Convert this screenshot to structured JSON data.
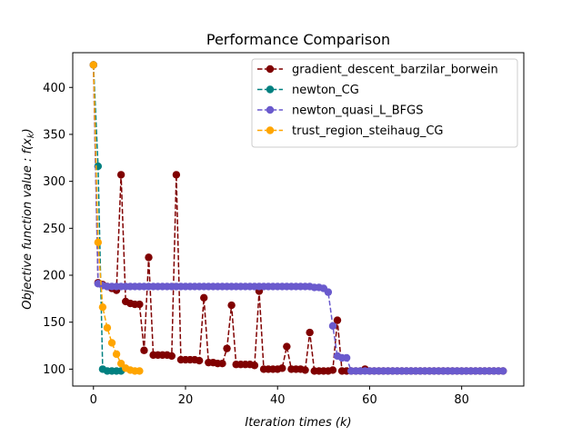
{
  "chart_data": {
    "type": "line",
    "title": "Performance Comparison",
    "xlabel": "Iteration times (k)",
    "ylabel": "Objective function value : f(x_k)",
    "xlim": [
      -4.5,
      93.5
    ],
    "ylim": [
      82,
      437
    ],
    "xticks": [
      0,
      20,
      40,
      60,
      80
    ],
    "yticks": [
      100,
      150,
      200,
      250,
      300,
      350,
      400
    ],
    "grid": false,
    "legend_position": "top-right",
    "series": [
      {
        "name": "gradient_descent_barzilar_borwein",
        "color": "#800000",
        "x": [
          0,
          1,
          2,
          3,
          4,
          5,
          6,
          7,
          8,
          9,
          10,
          11,
          12,
          13,
          14,
          15,
          16,
          17,
          18,
          19,
          20,
          21,
          22,
          23,
          24,
          25,
          26,
          27,
          28,
          29,
          30,
          31,
          32,
          33,
          34,
          35,
          36,
          37,
          38,
          39,
          40,
          41,
          42,
          43,
          44,
          45,
          46,
          47,
          48,
          49,
          50,
          51,
          52,
          53,
          54,
          55,
          56,
          57,
          58,
          59,
          60,
          61,
          62,
          63,
          64,
          65,
          66,
          67,
          68,
          69,
          70,
          71,
          72,
          73,
          74,
          75,
          76,
          77,
          78,
          79,
          80,
          81,
          82,
          83,
          84,
          85,
          86,
          87,
          88,
          89
        ],
        "y": [
          424,
          192,
          190,
          188,
          186,
          184,
          307,
          172,
          170,
          169,
          169,
          120,
          219,
          115,
          115,
          115,
          115,
          114,
          307,
          110,
          110,
          110,
          110,
          109,
          176,
          107,
          107,
          106,
          106,
          122,
          168,
          105,
          105,
          105,
          105,
          104,
          183,
          100,
          100,
          100,
          100,
          101,
          124,
          100,
          100,
          100,
          99,
          139,
          98,
          98,
          98,
          98,
          99,
          152,
          98,
          98,
          98,
          98,
          98,
          100,
          98,
          98,
          98,
          98,
          98,
          98,
          98,
          98,
          98,
          98,
          98,
          98,
          98,
          98,
          98,
          98,
          98,
          98,
          98,
          98,
          98,
          98,
          98,
          98,
          98,
          98,
          98,
          98,
          98,
          98
        ]
      },
      {
        "name": "newton_CG",
        "color": "#008080",
        "x": [
          0,
          1,
          2,
          3,
          4,
          5,
          6
        ],
        "y": [
          424,
          316,
          100,
          98,
          98,
          98,
          98
        ]
      },
      {
        "name": "newton_quasi_L_BFGS",
        "color": "#6a5acd",
        "x": [
          0,
          1,
          2,
          3,
          4,
          5,
          6,
          7,
          8,
          9,
          10,
          11,
          12,
          13,
          14,
          15,
          16,
          17,
          18,
          19,
          20,
          21,
          22,
          23,
          24,
          25,
          26,
          27,
          28,
          29,
          30,
          31,
          32,
          33,
          34,
          35,
          36,
          37,
          38,
          39,
          40,
          41,
          42,
          43,
          44,
          45,
          46,
          47,
          48,
          49,
          50,
          51,
          52,
          53,
          54,
          55,
          56,
          57,
          58,
          59,
          60,
          61,
          62,
          63,
          64,
          65,
          66,
          67,
          68,
          69,
          70,
          71,
          72,
          73,
          74,
          75,
          76,
          77,
          78,
          79,
          80,
          81,
          82,
          83,
          84,
          85,
          86,
          87,
          88,
          89
        ],
        "y": [
          424,
          191,
          189,
          188,
          188,
          188,
          188,
          188,
          188,
          188,
          188,
          188,
          188,
          188,
          188,
          188,
          188,
          188,
          188,
          188,
          188,
          188,
          188,
          188,
          188,
          188,
          188,
          188,
          188,
          188,
          188,
          188,
          188,
          188,
          188,
          188,
          188,
          188,
          188,
          188,
          188,
          188,
          188,
          188,
          188,
          188,
          188,
          188,
          187,
          187,
          186,
          182,
          146,
          114,
          112,
          112,
          98,
          98,
          98,
          98,
          98,
          98,
          98,
          98,
          98,
          98,
          98,
          98,
          98,
          98,
          98,
          98,
          98,
          98,
          98,
          98,
          98,
          98,
          98,
          98,
          98,
          98,
          98,
          98,
          98,
          98,
          98,
          98,
          98,
          98
        ]
      },
      {
        "name": "trust_region_steihaug_CG",
        "color": "#ffa500",
        "x": [
          0,
          1,
          2,
          3,
          4,
          5,
          6,
          7,
          8,
          9,
          10
        ],
        "y": [
          424,
          235,
          166,
          144,
          128,
          116,
          106,
          101,
          99,
          98,
          98
        ]
      }
    ]
  }
}
